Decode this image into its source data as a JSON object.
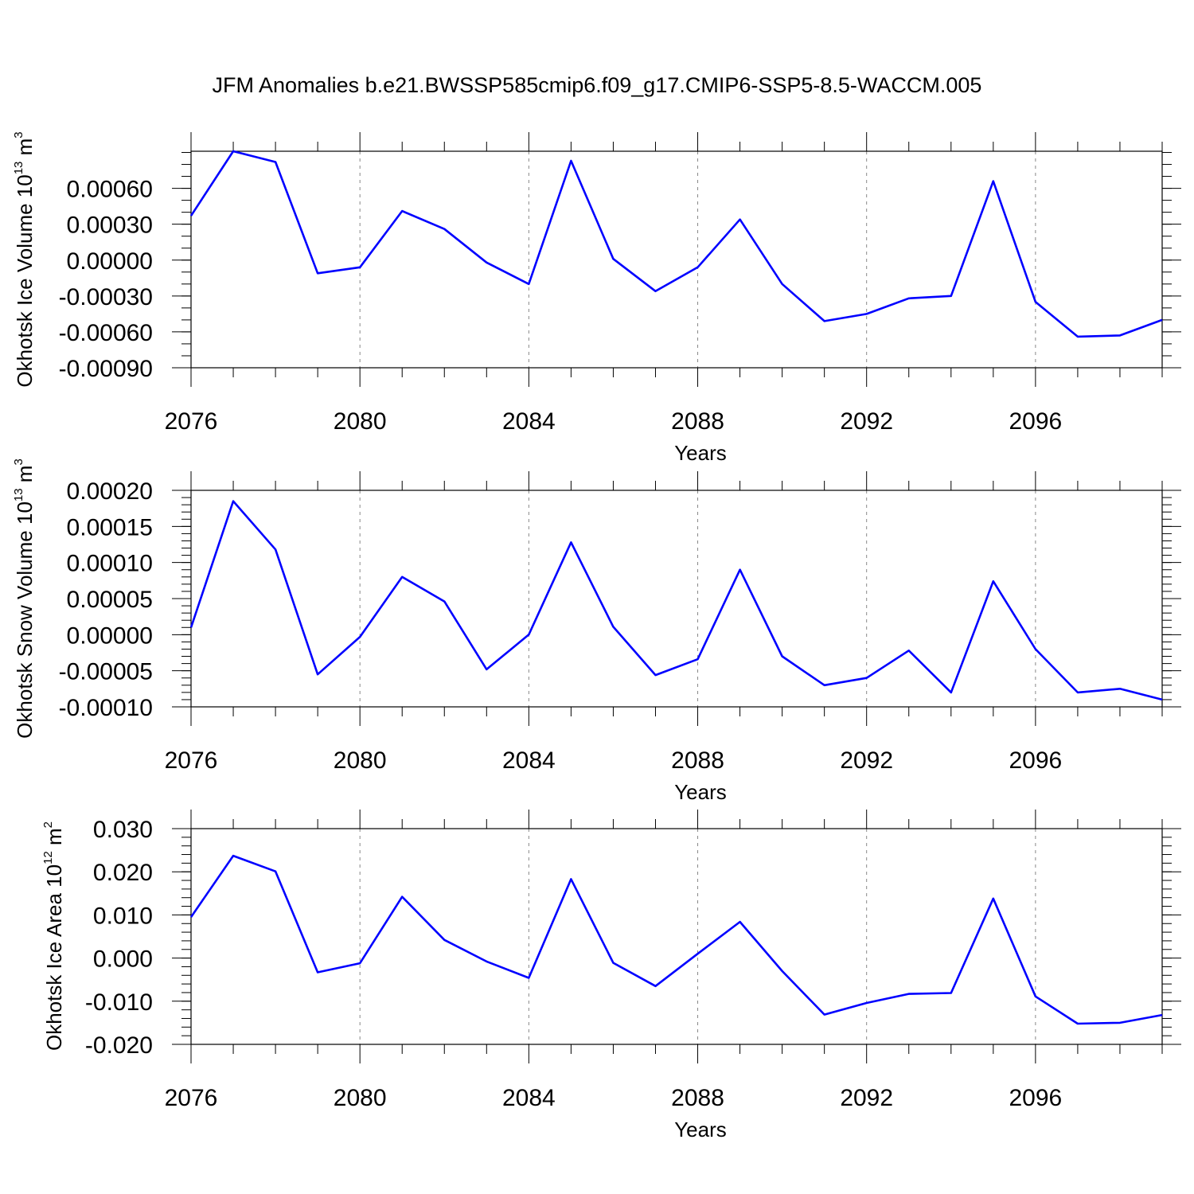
{
  "title": "JFM Anomalies b.e21.BWSSP585cmip6.f09_g17.CMIP6-SSP5-8.5-WACCM.005",
  "colors": {
    "line": "#0000ff",
    "axis": "#000000",
    "grid": "#888888"
  },
  "chart_data": [
    {
      "type": "line",
      "xlabel": "Years",
      "ylabel": "Okhotsk Ice Volume 10",
      "ylabel_exponent": "13",
      "ylabel_unit": " m",
      "ylabel_unit_exponent": "3",
      "xlim": [
        2076,
        2099
      ],
      "ylim": [
        -0.0009,
        0.00091
      ],
      "x_ticks": [
        2076,
        2080,
        2084,
        2088,
        2092,
        2096
      ],
      "x_tick_labels": [
        "2076",
        "2080",
        "2084",
        "2088",
        "2092",
        "2096"
      ],
      "y_ticks": [
        0.0006,
        0.0003,
        0.0,
        -0.0003,
        -0.0006,
        -0.0009
      ],
      "y_tick_labels": [
        "0.00060",
        "0.00030",
        "0.00000",
        "-0.00030",
        "-0.00060",
        "-0.00090"
      ],
      "y_minor_step": 0.0001,
      "grid_x": [
        2080,
        2084,
        2088,
        2092,
        2096
      ],
      "series": [
        {
          "name": "Okhotsk Ice Volume",
          "x": [
            2076,
            2077,
            2078,
            2079,
            2080,
            2081,
            2082,
            2083,
            2084,
            2085,
            2086,
            2087,
            2088,
            2089,
            2090,
            2091,
            2092,
            2093,
            2094,
            2095,
            2096,
            2097,
            2098,
            2099
          ],
          "values": [
            0.00037,
            0.00091,
            0.00082,
            -0.00011,
            -6e-05,
            0.00041,
            0.00026,
            -2e-05,
            -0.0002,
            0.00083,
            1e-05,
            -0.00026,
            -6e-05,
            0.00034,
            -0.0002,
            -0.00051,
            -0.00045,
            -0.00032,
            -0.0003,
            0.00066,
            -0.00035,
            -0.00064,
            -0.00063,
            -0.0005
          ]
        }
      ]
    },
    {
      "type": "line",
      "xlabel": "Years",
      "ylabel": "Okhotsk Snow Volume 10",
      "ylabel_exponent": "13",
      "ylabel_unit": " m",
      "ylabel_unit_exponent": "3",
      "xlim": [
        2076,
        2099
      ],
      "ylim": [
        -0.0001,
        0.0002
      ],
      "x_ticks": [
        2076,
        2080,
        2084,
        2088,
        2092,
        2096
      ],
      "x_tick_labels": [
        "2076",
        "2080",
        "2084",
        "2088",
        "2092",
        "2096"
      ],
      "y_ticks": [
        0.0002,
        0.00015,
        0.0001,
        5e-05,
        0.0,
        -5e-05,
        -0.0001
      ],
      "y_tick_labels": [
        "0.00020",
        "0.00015",
        "0.00010",
        "0.00005",
        "0.00000",
        "-0.00005",
        "-0.00010"
      ],
      "y_minor_step": 1e-05,
      "grid_x": [
        2080,
        2084,
        2088,
        2092,
        2096
      ],
      "series": [
        {
          "name": "Okhotsk Snow Volume",
          "x": [
            2076,
            2077,
            2078,
            2079,
            2080,
            2081,
            2082,
            2083,
            2084,
            2085,
            2086,
            2087,
            2088,
            2089,
            2090,
            2091,
            2092,
            2093,
            2094,
            2095,
            2096,
            2097,
            2098,
            2099
          ],
          "values": [
            1e-05,
            0.000185,
            0.000118,
            -5.5e-05,
            -3e-06,
            8e-05,
            4.6e-05,
            -4.8e-05,
            0.0,
            0.000128,
            1.1e-05,
            -5.6e-05,
            -3.4e-05,
            9e-05,
            -3e-05,
            -7e-05,
            -6e-05,
            -2.2e-05,
            -8e-05,
            7.4e-05,
            -2e-05,
            -8e-05,
            -7.5e-05,
            -9e-05
          ]
        }
      ]
    },
    {
      "type": "line",
      "xlabel": "Years",
      "ylabel": "Okhotsk Ice Area 10",
      "ylabel_exponent": "12",
      "ylabel_unit": " m",
      "ylabel_unit_exponent": "2",
      "xlim": [
        2076,
        2099
      ],
      "ylim": [
        -0.02,
        0.03
      ],
      "x_ticks": [
        2076,
        2080,
        2084,
        2088,
        2092,
        2096
      ],
      "x_tick_labels": [
        "2076",
        "2080",
        "2084",
        "2088",
        "2092",
        "2096"
      ],
      "y_ticks": [
        0.03,
        0.02,
        0.01,
        0.0,
        -0.01,
        -0.02
      ],
      "y_tick_labels": [
        "0.030",
        "0.020",
        "0.010",
        "0.000",
        "-0.010",
        "-0.020"
      ],
      "y_minor_step": 0.002,
      "grid_x": [
        2080,
        2084,
        2088,
        2092,
        2096
      ],
      "series": [
        {
          "name": "Okhotsk Ice Area",
          "x": [
            2076,
            2077,
            2078,
            2079,
            2080,
            2081,
            2082,
            2083,
            2084,
            2085,
            2086,
            2087,
            2088,
            2089,
            2090,
            2091,
            2092,
            2093,
            2094,
            2095,
            2096,
            2097,
            2098,
            2099
          ],
          "values": [
            0.0095,
            0.0237,
            0.0201,
            -0.0033,
            -0.0012,
            0.0142,
            0.0042,
            -0.0008,
            -0.0046,
            0.0183,
            -0.0011,
            -0.0065,
            0.001,
            0.0084,
            -0.003,
            -0.0131,
            -0.0104,
            -0.0083,
            -0.0081,
            0.0138,
            -0.0089,
            -0.0152,
            -0.015,
            -0.0132
          ]
        }
      ]
    }
  ]
}
